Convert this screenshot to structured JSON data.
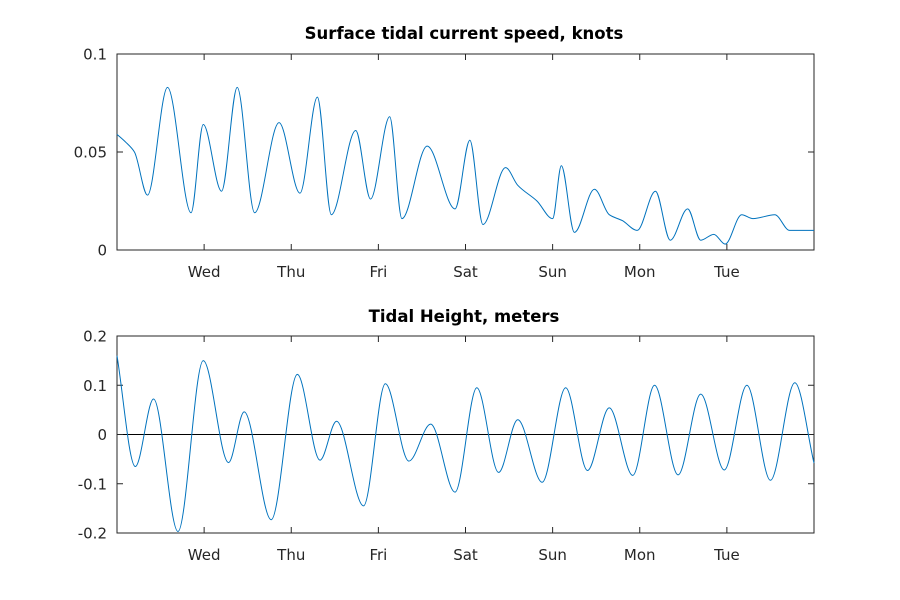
{
  "colors": {
    "series": "#0072BD",
    "zero_line": "#000000",
    "axes": "#262626"
  },
  "chart_data": [
    {
      "type": "line",
      "title": "Surface tidal current speed, knots",
      "xlabel": "",
      "ylabel": "",
      "ylim": [
        0,
        0.1
      ],
      "yticks": [
        0,
        0.05,
        0.1
      ],
      "ytick_labels": [
        "0",
        "0.05",
        "0.1"
      ],
      "xlim": [
        0,
        8
      ],
      "xticks": [
        1,
        2,
        3,
        4,
        5,
        6,
        7
      ],
      "xtick_labels": [
        "Wed",
        "Thu",
        "Fri",
        "Sat",
        "Sun",
        "Mon",
        "Tue"
      ],
      "grid": false,
      "series": [
        {
          "x": [
            0,
            0.1,
            0.2,
            0.35,
            0.58,
            0.85,
            0.99,
            1.2,
            1.38,
            1.58,
            1.86,
            2.1,
            2.3,
            2.46,
            2.74,
            2.91,
            3.13,
            3.27,
            3.56,
            3.88,
            4.05,
            4.2,
            4.46,
            4.6,
            4.82,
            5.0,
            5.1,
            5.25,
            5.48,
            5.65,
            5.8,
            5.97,
            6.18,
            6.35,
            6.55,
            6.7,
            6.85,
            6.98,
            7.17,
            7.3,
            7.55,
            7.72,
            7.98,
            8.0
          ],
          "y": [
            0.059,
            0.055,
            0.05,
            0.028,
            0.083,
            0.019,
            0.064,
            0.03,
            0.083,
            0.019,
            0.065,
            0.029,
            0.078,
            0.018,
            0.061,
            0.026,
            0.068,
            0.016,
            0.053,
            0.021,
            0.056,
            0.013,
            0.042,
            0.033,
            0.025,
            0.016,
            0.043,
            0.009,
            0.031,
            0.018,
            0.015,
            0.01,
            0.03,
            0.005,
            0.021,
            0.005,
            0.008,
            0.003,
            0.018,
            0.016,
            0.018,
            0.01,
            0.01,
            0.01
          ]
        }
      ]
    },
    {
      "type": "line",
      "title": "Tidal Height, meters",
      "xlabel": "",
      "ylabel": "",
      "ylim": [
        -0.2,
        0.2
      ],
      "yticks": [
        -0.2,
        -0.1,
        0,
        0.1,
        0.2
      ],
      "ytick_labels": [
        "-0.2",
        "-0.1",
        "0",
        "0.1",
        "0.2"
      ],
      "xlim": [
        0,
        8
      ],
      "xticks": [
        1,
        2,
        3,
        4,
        5,
        6,
        7
      ],
      "xtick_labels": [
        "Wed",
        "Thu",
        "Fri",
        "Sat",
        "Sun",
        "Mon",
        "Tue"
      ],
      "grid": false,
      "reference_line_y": 0,
      "series": [
        {
          "x": [
            0,
            0.21,
            0.42,
            0.7,
            0.99,
            1.28,
            1.46,
            1.77,
            2.07,
            2.33,
            2.52,
            2.83,
            3.08,
            3.35,
            3.6,
            3.88,
            4.13,
            4.38,
            4.6,
            4.88,
            5.15,
            5.4,
            5.65,
            5.92,
            6.17,
            6.44,
            6.7,
            6.97,
            7.23,
            7.5,
            7.78,
            8.0
          ],
          "y": [
            0.16,
            -0.065,
            0.072,
            -0.197,
            0.15,
            -0.057,
            0.046,
            -0.173,
            0.122,
            -0.052,
            0.027,
            -0.145,
            0.103,
            -0.054,
            0.021,
            -0.117,
            0.095,
            -0.077,
            0.03,
            -0.097,
            0.095,
            -0.073,
            0.054,
            -0.083,
            0.1,
            -0.082,
            0.082,
            -0.072,
            0.1,
            -0.093,
            0.105,
            -0.058
          ]
        }
      ]
    }
  ]
}
